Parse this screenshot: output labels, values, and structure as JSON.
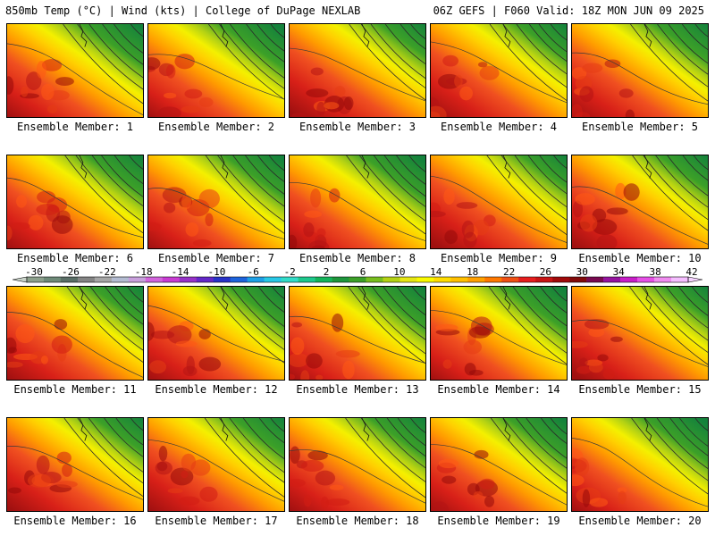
{
  "header": {
    "left_title": "850mb Temp (°C) | Wind (kts) | College of DuPage NEXLAB",
    "right_title": "06Z GEFS | F060 Valid: 18Z MON JUN 09 2025"
  },
  "members": [
    {
      "label": "Ensemble Member: 1"
    },
    {
      "label": "Ensemble Member: 2"
    },
    {
      "label": "Ensemble Member: 3"
    },
    {
      "label": "Ensemble Member: 4"
    },
    {
      "label": "Ensemble Member: 5"
    },
    {
      "label": "Ensemble Member: 6"
    },
    {
      "label": "Ensemble Member: 7"
    },
    {
      "label": "Ensemble Member: 8"
    },
    {
      "label": "Ensemble Member: 9"
    },
    {
      "label": "Ensemble Member: 10"
    },
    {
      "label": "Ensemble Member: 11"
    },
    {
      "label": "Ensemble Member: 12"
    },
    {
      "label": "Ensemble Member: 13"
    },
    {
      "label": "Ensemble Member: 14"
    },
    {
      "label": "Ensemble Member: 15"
    },
    {
      "label": "Ensemble Member: 16"
    },
    {
      "label": "Ensemble Member: 17"
    },
    {
      "label": "Ensemble Member: 18"
    },
    {
      "label": "Ensemble Member: 19"
    },
    {
      "label": "Ensemble Member: 20"
    }
  ],
  "colorbar": {
    "tick_labels": [
      "-30",
      "-26",
      "-22",
      "-18",
      "-14",
      "-10",
      "-6",
      "-2",
      "2",
      "6",
      "10",
      "14",
      "18",
      "22",
      "26",
      "30",
      "34",
      "38",
      "42"
    ],
    "colors": [
      "#8ca08c",
      "#6e8a78",
      "#5a6e66",
      "#848484",
      "#a6a6a6",
      "#b4bcd2",
      "#c8a0dc",
      "#d264dc",
      "#c83cd2",
      "#9632c8",
      "#6428c8",
      "#2832c8",
      "#1e64dc",
      "#1ea0e6",
      "#28c8e6",
      "#32dcc8",
      "#1ec88c",
      "#14b45a",
      "#1e963c",
      "#3ca028",
      "#78be1e",
      "#b4d214",
      "#e6e614",
      "#fafa00",
      "#ffdc00",
      "#ffc000",
      "#ffa000",
      "#ff7800",
      "#f05014",
      "#e61e1e",
      "#c81414",
      "#a00a0a",
      "#820a0a",
      "#780a50",
      "#9614a0",
      "#c81ec8",
      "#e650e6",
      "#f08cf0",
      "#f5beff"
    ]
  }
}
